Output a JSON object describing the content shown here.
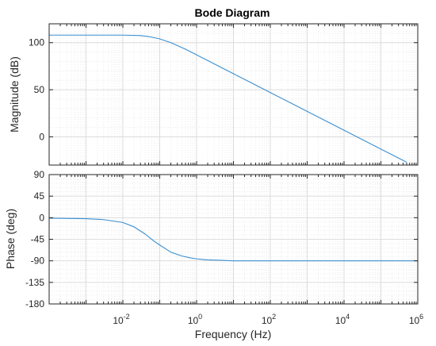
{
  "chart_data": {
    "type": "line",
    "title": "Bode Diagram",
    "xlabel": "Frequency  (Hz)",
    "xscale": "log",
    "xlim": [
      0.0001,
      1000000
    ],
    "x_ticks": [
      {
        "base": "10",
        "exp": "-2",
        "value": 0.01
      },
      {
        "base": "10",
        "exp": "0",
        "value": 1
      },
      {
        "base": "10",
        "exp": "2",
        "value": 100
      },
      {
        "base": "10",
        "exp": "4",
        "value": 10000
      },
      {
        "base": "10",
        "exp": "6",
        "value": 1000000
      }
    ],
    "grid": true,
    "subplots": [
      {
        "ylabel": "Magnitude (dB)",
        "ylim": [
          -30,
          120
        ],
        "yticks": [
          0,
          50,
          100
        ],
        "series": [
          {
            "color": "#3a8fd1",
            "x": [
              0.0001,
              0.001,
              0.01,
              0.03,
              0.05,
              0.1,
              0.2,
              0.5,
              1,
              2,
              5,
              10,
              100,
              1000,
              10000,
              100000,
              500000
            ],
            "y": [
              108,
              108,
              108,
              107.5,
              106.5,
              104,
              100,
              93,
              87,
              81,
              73,
              67,
              47,
              27,
              7,
              -13,
              -27
            ]
          }
        ]
      },
      {
        "ylabel": "Phase (deg)",
        "ylim": [
          -180,
          90
        ],
        "yticks": [
          90,
          45,
          0,
          -45,
          -90,
          -135,
          -180
        ],
        "series": [
          {
            "color": "#3a8fd1",
            "x": [
              0.0001,
              0.001,
              0.003,
              0.01,
              0.02,
              0.04,
              0.07,
              0.1,
              0.2,
              0.4,
              0.7,
              1,
              2,
              5,
              10,
              100,
              1000,
              10000,
              100000,
              1000000
            ],
            "y": [
              -1,
              -2,
              -4,
              -10,
              -19,
              -34,
              -49,
              -57,
              -72,
              -80,
              -84,
              -86,
              -88,
              -89,
              -90,
              -90,
              -90,
              -90,
              -90,
              -90
            ]
          }
        ]
      }
    ]
  }
}
